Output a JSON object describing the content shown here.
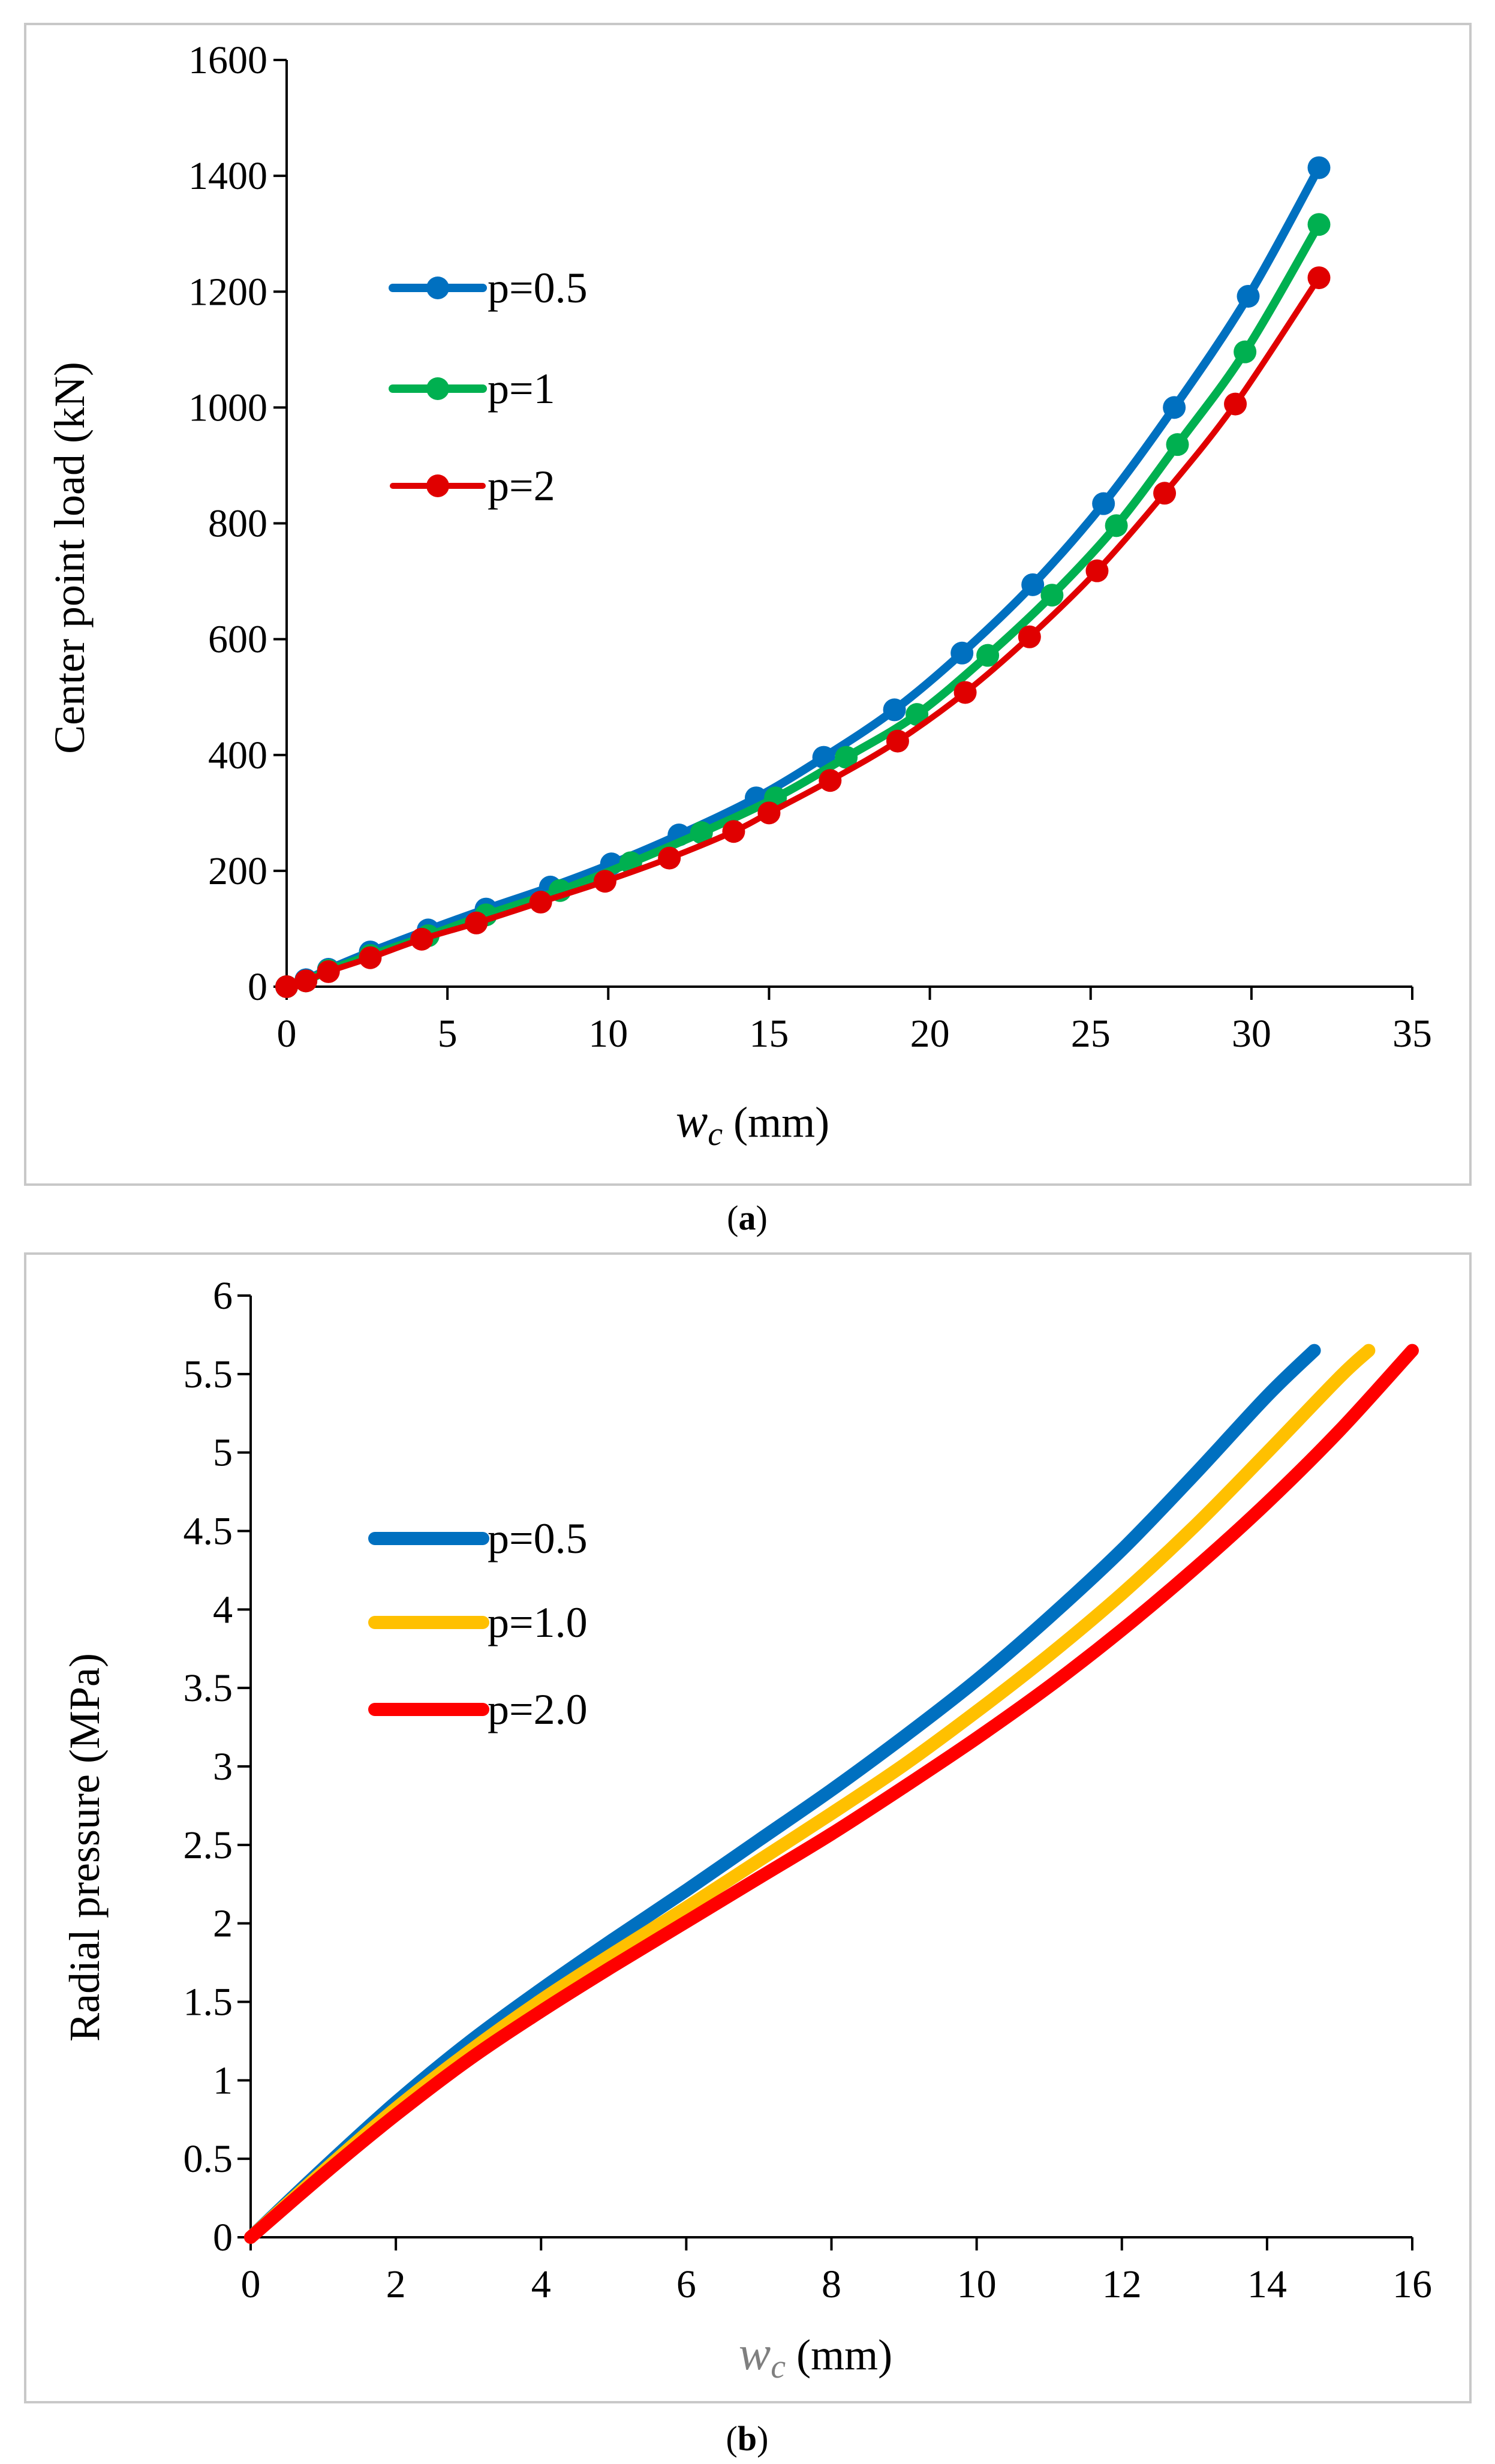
{
  "chart_data": [
    {
      "type": "line",
      "caption_letter": "a",
      "ylabel": "Center point load (kN)",
      "xlabel_var": "w",
      "xlabel_sub": "c",
      "xlabel_unit": " (mm)",
      "xlim": [
        0,
        35
      ],
      "ylim": [
        0,
        1600
      ],
      "xticks": [
        0,
        5,
        10,
        15,
        20,
        25,
        30,
        35
      ],
      "yticks": [
        0,
        200,
        400,
        600,
        800,
        1000,
        1200,
        1400,
        1600
      ],
      "grid": false,
      "legend": "left",
      "series": [
        {
          "name": "p=0.5",
          "color": "#0070C0",
          "markers": true,
          "x": [
            0,
            0.6,
            1.3,
            2.6,
            4.4,
            6.2,
            8.2,
            10.1,
            12.2,
            14.6,
            16.7,
            18.9,
            21.0,
            23.2,
            25.4,
            27.6,
            29.9,
            32.1
          ],
          "y": [
            0,
            12,
            30,
            60,
            98,
            134,
            172,
            212,
            262,
            326,
            396,
            478,
            576,
            694,
            834,
            1000,
            1192,
            1414
          ]
        },
        {
          "name": "p=1",
          "color": "#00B050",
          "markers": true,
          "x": [
            0,
            0.6,
            1.3,
            2.6,
            4.4,
            6.2,
            8.5,
            10.7,
            12.9,
            15.2,
            17.4,
            19.6,
            21.8,
            23.8,
            25.8,
            27.7,
            29.8,
            32.1
          ],
          "y": [
            0,
            10,
            28,
            54,
            88,
            124,
            166,
            214,
            266,
            326,
            396,
            470,
            572,
            676,
            796,
            936,
            1096,
            1316
          ]
        },
        {
          "name": "p=2",
          "color": "#E00000",
          "markers": true,
          "x": [
            0,
            0.6,
            1.3,
            2.6,
            4.2,
            5.9,
            7.9,
            9.9,
            11.9,
            13.9,
            15.0,
            16.9,
            19.0,
            21.1,
            23.1,
            25.2,
            27.3,
            29.5,
            32.1
          ],
          "y": [
            0,
            10,
            26,
            50,
            82,
            110,
            146,
            182,
            222,
            268,
            300,
            356,
            424,
            508,
            604,
            718,
            852,
            1006,
            1224
          ]
        }
      ]
    },
    {
      "type": "line",
      "caption_letter": "b",
      "ylabel": "Radial pressure (MPa)",
      "xlabel_var": "w",
      "xlabel_sub": "c",
      "xlabel_unit": " (mm)",
      "xlim": [
        0,
        16
      ],
      "ylim": [
        0,
        6
      ],
      "xticks": [
        0,
        2,
        4,
        6,
        8,
        10,
        12,
        14,
        16
      ],
      "yticks": [
        0,
        0.5,
        1,
        1.5,
        2,
        2.5,
        3,
        3.5,
        4,
        4.5,
        5,
        5.5,
        6
      ],
      "grid": false,
      "legend": "left",
      "series": [
        {
          "name": "p=0.5",
          "color": "#0070C0",
          "markers": false,
          "x": [
            0,
            1,
            2,
            3,
            4,
            5,
            6,
            7,
            8,
            9,
            10,
            11,
            12,
            13,
            14,
            14.65
          ],
          "y": [
            0,
            0.44,
            0.86,
            1.24,
            1.58,
            1.9,
            2.21,
            2.53,
            2.85,
            3.19,
            3.55,
            3.95,
            4.38,
            4.86,
            5.36,
            5.65
          ]
        },
        {
          "name": "p=1.0",
          "color": "#FFC000",
          "markers": false,
          "x": [
            0,
            1,
            2,
            3,
            4,
            5,
            6,
            7,
            8,
            9,
            10,
            11,
            12,
            13,
            14,
            15,
            15.4
          ],
          "y": [
            0,
            0.42,
            0.82,
            1.18,
            1.51,
            1.81,
            2.1,
            2.4,
            2.7,
            3.01,
            3.35,
            3.71,
            4.1,
            4.53,
            5.0,
            5.48,
            5.65
          ]
        },
        {
          "name": "p=2.0",
          "color": "#FF0000",
          "markers": false,
          "x": [
            0,
            1,
            2,
            3,
            4,
            5,
            6,
            7,
            8,
            9,
            10,
            11,
            12,
            13,
            14,
            15,
            16
          ],
          "y": [
            0,
            0.4,
            0.78,
            1.13,
            1.44,
            1.73,
            2.01,
            2.29,
            2.57,
            2.87,
            3.18,
            3.51,
            3.87,
            4.26,
            4.68,
            5.14,
            5.65
          ]
        }
      ]
    }
  ]
}
